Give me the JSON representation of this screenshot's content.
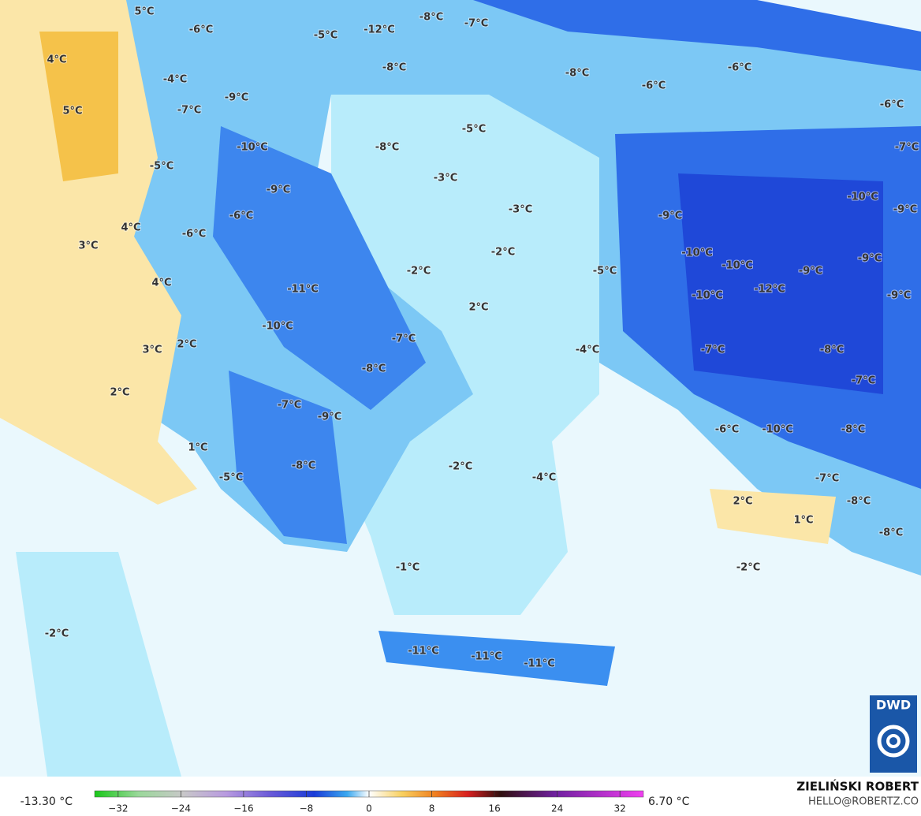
{
  "map": {
    "labels": [
      "5°C",
      "-8°C",
      "-7°C",
      "-6°C",
      "-5°C",
      "-12°C",
      "4°C",
      "-8°C",
      "-8°C",
      "-6°C",
      "-4°C",
      "-6°C",
      "-9°C",
      "5°C",
      "-7°C",
      "-6°C",
      "-5°C",
      "-7°C",
      "-10°C",
      "-8°C",
      "-5°C",
      "-3°C",
      "-9°C",
      "-10°C",
      "-9°C",
      "-6°C",
      "-3°C",
      "-9°C",
      "4°C",
      "-6°C",
      "3°C",
      "-2°C",
      "-10°C",
      "-10°C",
      "-9°C",
      "-2°C",
      "-5°C",
      "-9°C",
      "4°C",
      "-11°C",
      "-12°C",
      "-10°C",
      "-9°C",
      "2°C",
      "-10°C",
      "-7°C",
      "-4°C",
      "3°C",
      "2°C",
      "-7°C",
      "-8°C",
      "-8°C",
      "2°C",
      "-7°C",
      "-7°C",
      "-9°C",
      "-6°C",
      "-10°C",
      "-8°C",
      "1°C",
      "-2°C",
      "-8°C",
      "-5°C",
      "-4°C",
      "-7°C",
      "2°C",
      "-8°C",
      "1°C",
      "-8°C",
      "-1°C",
      "-2°C",
      "-2°C",
      "-11°C",
      "-11°C",
      "-11°C"
    ]
  },
  "colorbar": {
    "min_label": "-13.30 °C",
    "max_label": "6.70 °C",
    "lim": [
      -35,
      35
    ],
    "ticks": [
      {
        "value": -32,
        "label": "−32"
      },
      {
        "value": -24,
        "label": "−24"
      },
      {
        "value": -16,
        "label": "−16"
      },
      {
        "value": -8,
        "label": "−8"
      },
      0,
      8,
      16,
      24,
      32
    ]
  },
  "credit": {
    "name": "ZIELIŃSKI ROBERT",
    "email": "HELLO@ROBERTZ.CO",
    "logo": "DWD"
  }
}
